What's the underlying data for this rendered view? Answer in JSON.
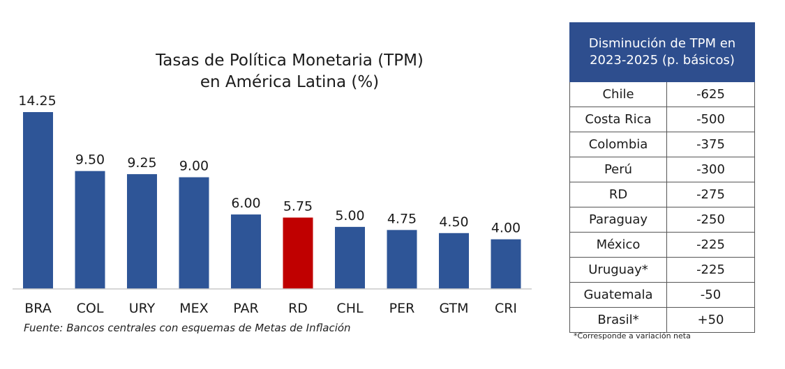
{
  "chart_data": {
    "type": "bar",
    "title": "Tasas de Política Monetaria (TPM)\nen América Latina (%)",
    "categories": [
      "BRA",
      "COL",
      "URY",
      "MEX",
      "PAR",
      "RD",
      "CHL",
      "PER",
      "GTM",
      "CRI"
    ],
    "values": [
      14.25,
      9.5,
      9.25,
      9.0,
      6.0,
      5.75,
      5.0,
      4.75,
      4.5,
      4.0
    ],
    "value_labels": [
      "14.25",
      "9.50",
      "9.25",
      "9.00",
      "6.00",
      "5.75",
      "5.00",
      "4.75",
      "4.50",
      "4.00"
    ],
    "bar_colors": [
      "#2e5597",
      "#2e5597",
      "#2e5597",
      "#2e5597",
      "#2e5597",
      "#c00000",
      "#2e5597",
      "#2e5597",
      "#2e5597",
      "#2e5597"
    ],
    "ylim": [
      0,
      14.25
    ],
    "grid": false,
    "xlabel": "",
    "ylabel": ""
  },
  "source": "Fuente: Bancos centrales con esquemas de Metas de Inflación",
  "table": {
    "header": "Disminución de TPM en 2023-2025 (p. básicos)",
    "rows": [
      {
        "country": "Chile",
        "value": "-625"
      },
      {
        "country": "Costa Rica",
        "value": "-500"
      },
      {
        "country": "Colombia",
        "value": "-375"
      },
      {
        "country": "Perú",
        "value": "-300"
      },
      {
        "country": "RD",
        "value": "-275"
      },
      {
        "country": "Paraguay",
        "value": "-250"
      },
      {
        "country": "México",
        "value": "-225"
      },
      {
        "country": "Uruguay*",
        "value": "-225"
      },
      {
        "country": "Guatemala",
        "value": "-50"
      },
      {
        "country": "Brasil*",
        "value": "+50"
      }
    ],
    "footnote": "*Corresponde a variación neta"
  }
}
